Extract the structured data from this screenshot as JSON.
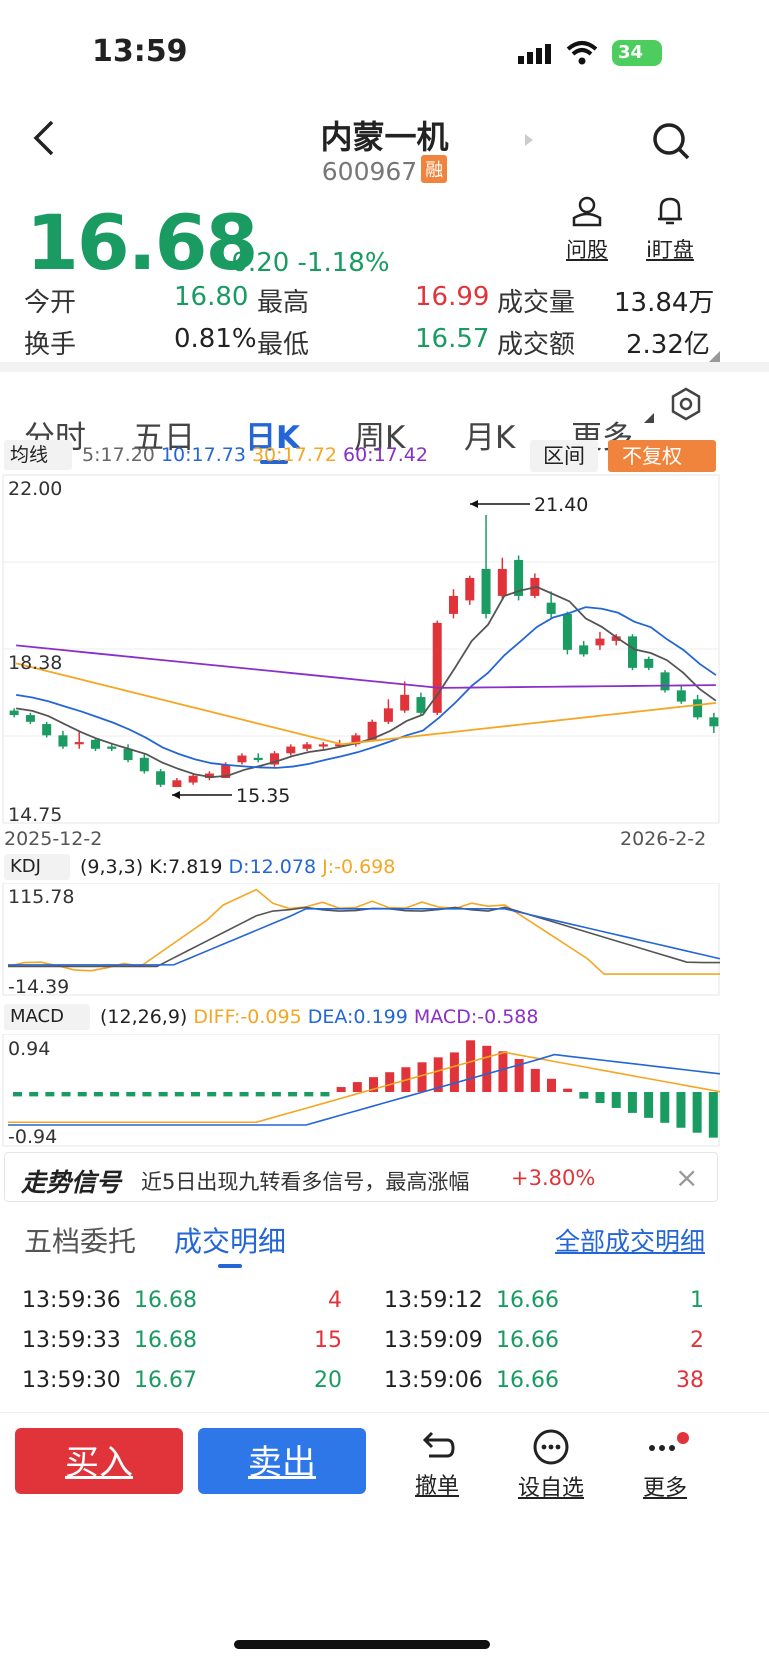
{
  "status_bar": {
    "time": "13:59",
    "battery": "34"
  },
  "header": {
    "title": "内蒙一机",
    "code": "600967",
    "badge": "融"
  },
  "quote": {
    "price": "16.68",
    "change": "-0.20",
    "change_pct": "-1.18%",
    "actions": [
      {
        "label": "问股",
        "icon": "user-icon"
      },
      {
        "label": "i盯盘",
        "icon": "bell-icon"
      }
    ],
    "rows": [
      {
        "l1": "今开",
        "v1": "16.80",
        "l2": "最高",
        "v2": "16.99",
        "l3": "成交量",
        "v3": "13.84万"
      },
      {
        "l1": "换手",
        "v1": "0.81%",
        "l2": "最低",
        "v2": "16.57",
        "l3": "成交额",
        "v3": "2.32亿"
      }
    ]
  },
  "tabs": [
    "分时",
    "五日",
    "日K",
    "周K",
    "月K",
    "更多"
  ],
  "active_tab": "日K",
  "ma_bar": {
    "selector": "均线",
    "ma5": "5:17.20",
    "ma10": "10:17.73",
    "ma30": "30:17.72",
    "ma60": "60:17.42",
    "range_btn": "区间",
    "adjust_btn": "不复权"
  },
  "kline": {
    "y_top": "22.00",
    "y_mid": "18.38",
    "y_bottom": "14.75",
    "high_label": "21.40",
    "low_label": "15.35",
    "date_start": "2025-12-2",
    "date_end": "2026-2-2"
  },
  "kdj": {
    "name": "KDJ",
    "params": "(9,3,3)",
    "k": "K:7.819",
    "d": "D:12.078",
    "j": "J:-0.698",
    "y_top": "115.78",
    "y_bottom": "-14.39"
  },
  "macd": {
    "name": "MACD",
    "params": "(12,26,9)",
    "diff": "DIFF:-0.095",
    "dea": "DEA:0.199",
    "macd": "MACD:-0.588",
    "y_top": "0.94",
    "y_bottom": "-0.94"
  },
  "signal": {
    "title": "走势信号",
    "text": "近5日出现九转看多信号，最高涨幅",
    "value": "+3.80%"
  },
  "detail_tabs": {
    "tab1": "五档委托",
    "tab2": "成交明细",
    "link": "全部成交明细"
  },
  "trades_left": [
    {
      "time": "13:59:36",
      "price": "16.68",
      "vol": "4",
      "color": "red"
    },
    {
      "time": "13:59:33",
      "price": "16.68",
      "vol": "15",
      "color": "red"
    },
    {
      "time": "13:59:30",
      "price": "16.67",
      "vol": "20",
      "color": "green"
    }
  ],
  "trades_right": [
    {
      "time": "13:59:12",
      "price": "16.66",
      "vol": "1",
      "color": "green"
    },
    {
      "time": "13:59:09",
      "price": "16.66",
      "vol": "2",
      "color": "red"
    },
    {
      "time": "13:59:06",
      "price": "16.66",
      "vol": "38",
      "color": "red"
    }
  ],
  "bottom": {
    "buy": "买入",
    "sell": "卖出",
    "cancel": "撤单",
    "watch": "设自选",
    "more": "更多"
  },
  "colors": {
    "up": "#e0343a",
    "down": "#1a9b62",
    "ma5": "#555555",
    "ma10": "#2466d6",
    "ma30": "#f5a623",
    "ma60": "#8b2fc9"
  }
}
